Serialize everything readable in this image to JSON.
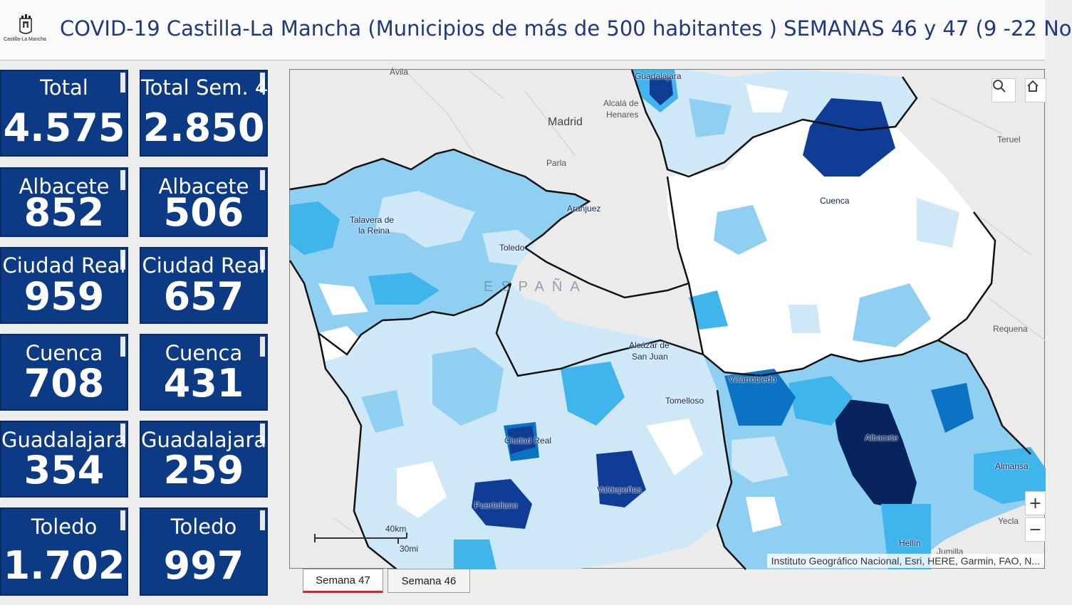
{
  "header": {
    "title": "COVID-19 Castilla-La Mancha (Municipios de más de 500 habitantes ) SEMANAS 46 y 47 (9 -22 No",
    "logo_text": "Castilla-La Mancha"
  },
  "cards": [
    {
      "label": "Total",
      "value": "4.575"
    },
    {
      "label": "Total Sem. 4",
      "value": "2.850"
    },
    {
      "label": "Albacete",
      "value": "852"
    },
    {
      "label": "Albacete",
      "value": "506"
    },
    {
      "label": "Ciudad Real",
      "value": "959"
    },
    {
      "label": "Ciudad Real",
      "value": "657"
    },
    {
      "label": "Cuenca",
      "value": "708"
    },
    {
      "label": "Cuenca",
      "value": "431"
    },
    {
      "label": "Guadalajara",
      "value": "354"
    },
    {
      "label": "Guadalajara",
      "value": "259"
    },
    {
      "label": "Toledo",
      "value": "1.702"
    },
    {
      "label": "Toledo",
      "value": "997"
    }
  ],
  "map": {
    "places": {
      "avila": "Ávila",
      "guadalajara": "Guadalajara",
      "alcala": "Alcalá de",
      "henares": "Henares",
      "madrid": "Madrid",
      "parla": "Parla",
      "aranjuez": "Aranjuez",
      "teruel": "Teruel",
      "talavera1": "Talavera de",
      "talavera2": "la Reina",
      "toledo": "Toledo",
      "cuenca": "Cuenca",
      "espana": "ESPAÑA",
      "requena": "Requena",
      "alcazar1": "Alcázar de",
      "alcazar2": "San Juan",
      "villarrobledo": "Villarrobledo",
      "tomelloso": "Tomelloso",
      "ciudad_real": "Ciudad Real",
      "albacete": "Albacete",
      "almansa": "Almansa",
      "valdepenas": "Valdepeñas",
      "puertollano": "Puertollano",
      "yecla": "Yecla",
      "hellin": "Hellín",
      "jumilla": "Jumilla"
    },
    "scale_km": "40km",
    "scale_mi": "30mi",
    "attribution": "Instituto Geográfico Nacional, Esri, HERE, Garmin, FAO, N...",
    "zoom_in": "+",
    "zoom_out": "−",
    "colors": {
      "base": "#ebebeb",
      "white": "#ffffff",
      "c1": "#cfe8f8",
      "c2": "#8fd0f2",
      "c3": "#3fb5ec",
      "c4": "#0a73c4",
      "c5": "#0f3c95",
      "c6": "#08245e"
    }
  },
  "tabs": [
    {
      "label": "Semana 47",
      "active": true
    },
    {
      "label": "Semana 46",
      "active": false
    }
  ]
}
